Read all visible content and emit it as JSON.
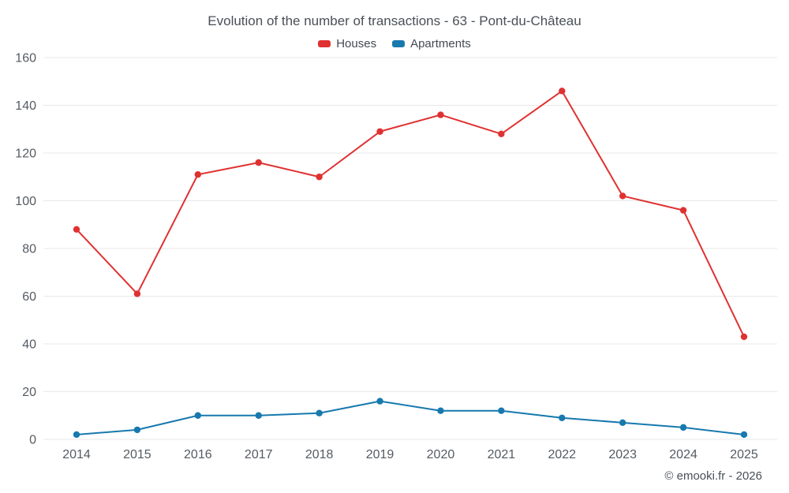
{
  "chart_data": {
    "type": "line",
    "title": "Evolution of the number of transactions - 63 - Pont-du-Château",
    "x": [
      "2014",
      "2015",
      "2016",
      "2017",
      "2018",
      "2019",
      "2020",
      "2021",
      "2022",
      "2023",
      "2024",
      "2025"
    ],
    "series": [
      {
        "name": "Houses",
        "color": "#e03131",
        "values": [
          88,
          61,
          111,
          116,
          110,
          129,
          136,
          128,
          146,
          102,
          96,
          43
        ]
      },
      {
        "name": "Apartments",
        "color": "#1779ae",
        "values": [
          2,
          4,
          10,
          10,
          11,
          16,
          12,
          12,
          9,
          7,
          5,
          2
        ]
      }
    ],
    "ylim": [
      0,
      160
    ],
    "ytick_step": 20,
    "grid": true,
    "gridline_color": "#e8e8e8",
    "legend_position": "top"
  },
  "footer": {
    "copyright": "© emooki.fr - 2026"
  }
}
